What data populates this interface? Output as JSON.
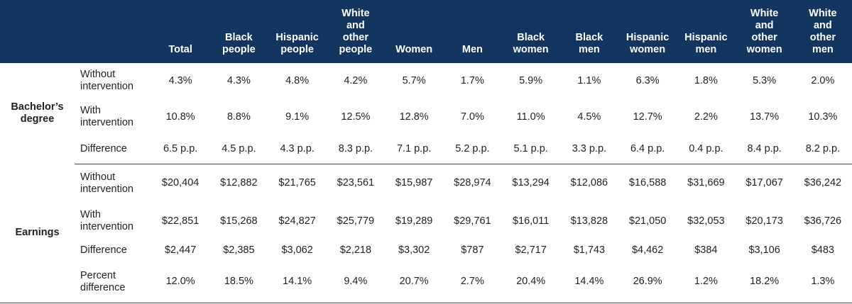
{
  "columns": [
    "",
    "",
    "Total",
    "Black people",
    "Hispanic people",
    "White and other people",
    "Women",
    "Men",
    "Black women",
    "Black men",
    "Hispanic women",
    "Hispanic men",
    "White and other women",
    "White and other men"
  ],
  "header_lines": [
    [],
    [],
    [
      "Total"
    ],
    [
      "Black",
      "people"
    ],
    [
      "Hispanic",
      "people"
    ],
    [
      "White",
      "and",
      "other",
      "people"
    ],
    [
      "Women"
    ],
    [
      "Men"
    ],
    [
      "Black",
      "women"
    ],
    [
      "Black",
      "men"
    ],
    [
      "Hispanic",
      "women"
    ],
    [
      "Hispanic",
      "men"
    ],
    [
      "White",
      "and",
      "other",
      "women"
    ],
    [
      "White",
      "and",
      "other",
      "men"
    ]
  ],
  "sections": [
    {
      "group_lines": [
        "Bachelor’s",
        "degree"
      ],
      "rows": [
        {
          "label_lines": [
            "Without",
            "intervention"
          ],
          "values": [
            "4.3%",
            "4.3%",
            "4.8%",
            "4.2%",
            "5.7%",
            "1.7%",
            "5.9%",
            "1.1%",
            "6.3%",
            "1.8%",
            "5.3%",
            "2.0%"
          ]
        },
        {
          "label_lines": [
            "With",
            "intervention"
          ],
          "values": [
            "10.8%",
            "8.8%",
            "9.1%",
            "12.5%",
            "12.8%",
            "7.0%",
            "11.0%",
            "4.5%",
            "12.7%",
            "2.2%",
            "13.7%",
            "10.3%"
          ]
        },
        {
          "label_lines": [
            "Difference"
          ],
          "values": [
            "6.5 p.p.",
            "4.5 p.p.",
            "4.3 p.p.",
            "8.3 p.p.",
            "7.1 p.p.",
            "5.2 p.p.",
            "5.1 p.p.",
            "3.3 p.p.",
            "6.4 p.p.",
            "0.4 p.p.",
            "8.4 p.p.",
            "8.2 p.p."
          ]
        }
      ]
    },
    {
      "group_lines": [
        "Earnings"
      ],
      "rows": [
        {
          "label_lines": [
            "Without",
            "intervention"
          ],
          "values": [
            "$20,404",
            "$12,882",
            "$21,765",
            "$23,561",
            "$15,987",
            "$28,974",
            "$13,294",
            "$12,086",
            "$16,588",
            "$31,669",
            "$17,067",
            "$36,242"
          ]
        },
        {
          "label_lines": [
            "With",
            "intervention"
          ],
          "values": [
            "$22,851",
            "$15,268",
            "$24,827",
            "$25,779",
            "$19,289",
            "$29,761",
            "$16,011",
            "$13,828",
            "$21,050",
            "$32,053",
            "$20,173",
            "$36,726"
          ]
        },
        {
          "label_lines": [
            "Difference"
          ],
          "values": [
            "$2,447",
            "$2,385",
            "$3,062",
            "$2,218",
            "$3,302",
            "$787",
            "$2,717",
            "$1,743",
            "$4,462",
            "$384",
            "$3,106",
            "$483"
          ]
        },
        {
          "label_lines": [
            "Percent",
            "difference"
          ],
          "values": [
            "12.0%",
            "18.5%",
            "14.1%",
            "9.4%",
            "20.7%",
            "2.7%",
            "20.4%",
            "14.4%",
            "26.9%",
            "1.2%",
            "18.2%",
            "1.3%"
          ]
        }
      ]
    }
  ]
}
